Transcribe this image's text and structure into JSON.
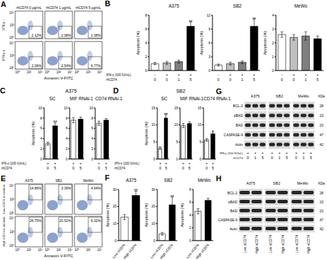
{
  "chart_data": [
    {
      "panel": "B",
      "type": "bar",
      "title": "A375",
      "y_label": "Apoptosis (%)",
      "categories": [
        null,
        null,
        null,
        null
      ],
      "x_rows": [
        {
          "label": "IFN-γ (100 IU/mL)",
          "values": [
            "-",
            "+",
            "+",
            "+"
          ]
        },
        {
          "label": "rhCD74",
          "values": [
            "0",
            "0",
            "1",
            "5"
          ]
        }
      ],
      "values": [
        1.0,
        1.1,
        1.3,
        6.4
      ],
      "errors": [
        0.15,
        0.2,
        0.2,
        0.6
      ],
      "annotations": [
        null,
        null,
        null,
        "**"
      ],
      "colors": [
        "#ffffff",
        "#bfbfbf",
        "#7f7f7f",
        "#000000"
      ],
      "ylim": [
        0,
        8
      ],
      "yticks": [
        0,
        2,
        4,
        6,
        8
      ]
    },
    {
      "panel": "B",
      "type": "bar",
      "title": "SB2",
      "y_label": "Apoptosis (%)",
      "categories": [
        null,
        null,
        null,
        null
      ],
      "x_rows": [
        {
          "values": [
            "-",
            "+",
            "+",
            "+"
          ]
        },
        {
          "values": [
            "0",
            "0",
            "1",
            "5"
          ]
        }
      ],
      "values": [
        1.2,
        1.5,
        1.8,
        9.6
      ],
      "errors": [
        0.2,
        0.3,
        0.3,
        1.5
      ],
      "annotations": [
        null,
        null,
        null,
        "**"
      ],
      "colors": [
        "#ffffff",
        "#bfbfbf",
        "#7f7f7f",
        "#000000"
      ],
      "ylim": [
        0,
        12
      ],
      "yticks": [
        0,
        3,
        6,
        9,
        12
      ]
    },
    {
      "panel": "B",
      "type": "bar",
      "title": "MeWo",
      "y_label": "Apoptosis (%)",
      "categories": [
        null,
        null,
        null,
        null
      ],
      "x_rows": [
        {
          "values": [
            "-",
            "+",
            "+",
            "+"
          ]
        },
        {
          "values": [
            "0",
            "0",
            "1",
            "5"
          ]
        }
      ],
      "values": [
        2.6,
        2.4,
        2.5,
        2.3
      ],
      "errors": [
        0.2,
        0.2,
        0.3,
        0.2
      ],
      "annotations": [
        null,
        null,
        null,
        null
      ],
      "colors": [
        "#ffffff",
        "#bfbfbf",
        "#7f7f7f",
        "#000000"
      ],
      "ylim": [
        0,
        4
      ],
      "yticks": [
        0,
        1,
        2,
        3,
        4
      ]
    },
    {
      "panel": "C",
      "group_title": "A375",
      "type": "bar",
      "title": "SC",
      "y_label": "Apoptosis (%)",
      "categories": [
        null,
        null
      ],
      "x_rows": [
        {
          "label": "IFN-γ (100 IU/mL)",
          "values": [
            "+",
            "+"
          ]
        },
        {
          "label": "rhCD74",
          "values": [
            "0",
            "5"
          ]
        }
      ],
      "values": [
        3.0,
        6.5
      ],
      "errors": [
        0.3,
        0.6
      ],
      "annotations": [
        null,
        "**"
      ],
      "colors": [
        "#ffffff",
        "#000000"
      ],
      "ylim": [
        0,
        10
      ],
      "yticks": [
        0,
        2,
        4,
        6,
        8,
        10
      ]
    },
    {
      "panel": "C",
      "type": "bar",
      "title": "MIF RNAi-1",
      "categories": [
        null,
        null
      ],
      "x_rows": [
        {
          "values": [
            "+",
            "+"
          ]
        },
        {
          "values": [
            "0",
            "5"
          ]
        }
      ],
      "values": [
        7.6,
        7.8
      ],
      "errors": [
        0.5,
        0.4
      ],
      "annotations": [
        null,
        null
      ],
      "colors": [
        "#ffffff",
        "#000000"
      ],
      "ylim": [
        0,
        10
      ],
      "yticks": [
        0,
        2,
        4,
        6,
        8,
        10
      ]
    },
    {
      "panel": "C",
      "type": "bar",
      "title": "CD74 RNAi-1",
      "categories": [
        null,
        null
      ],
      "x_rows": [
        {
          "values": [
            "+",
            "+"
          ]
        },
        {
          "values": [
            "0",
            "5"
          ]
        }
      ],
      "values": [
        7.0,
        7.6
      ],
      "errors": [
        0.4,
        0.3
      ],
      "annotations": [
        null,
        null
      ],
      "colors": [
        "#ffffff",
        "#000000"
      ],
      "ylim": [
        0,
        10
      ],
      "yticks": [
        0,
        2,
        4,
        6,
        8,
        10
      ]
    },
    {
      "panel": "D",
      "group_title": "SB2",
      "type": "bar",
      "title": "SC",
      "y_label": "Apoptosis (%)",
      "categories": [
        null,
        null
      ],
      "x_rows": [
        {
          "label": "IFN-γ (100 IU/mL)",
          "values": [
            "+",
            "+"
          ]
        },
        {
          "label": "rhCD74",
          "values": [
            "0",
            "5"
          ]
        }
      ],
      "values": [
        3.2,
        12.0
      ],
      "errors": [
        0.4,
        1.0
      ],
      "annotations": [
        null,
        "**"
      ],
      "colors": [
        "#ffffff",
        "#000000"
      ],
      "ylim": [
        0,
        15
      ],
      "yticks": [
        0,
        5,
        10,
        15
      ]
    },
    {
      "panel": "D",
      "type": "bar",
      "title": "MIF RNAi-1",
      "categories": [
        null,
        null
      ],
      "x_rows": [
        {
          "values": [
            "+",
            "+"
          ]
        },
        {
          "values": [
            "0",
            "5"
          ]
        }
      ],
      "values": [
        9.8,
        10.4
      ],
      "errors": [
        0.6,
        0.5
      ],
      "annotations": [
        null,
        null
      ],
      "colors": [
        "#ffffff",
        "#000000"
      ],
      "ylim": [
        0,
        15
      ],
      "yticks": [
        0,
        5,
        10,
        15
      ]
    },
    {
      "panel": "D",
      "type": "bar",
      "title": "CD74 RNAi-1",
      "categories": [
        null,
        null
      ],
      "x_rows": [
        {
          "values": [
            "+",
            "+"
          ]
        },
        {
          "values": [
            "0",
            "5"
          ]
        }
      ],
      "values": [
        5.6,
        7.4
      ],
      "errors": [
        0.4,
        0.5
      ],
      "annotations": [
        null,
        "*"
      ],
      "colors": [
        "#ffffff",
        "#000000"
      ],
      "ylim": [
        0,
        15
      ],
      "yticks": [
        0,
        5,
        10,
        15
      ]
    },
    {
      "panel": "F",
      "type": "bar",
      "title": "A375",
      "y_label": "Apoptosis (%)",
      "categories": [
        null,
        null
      ],
      "x_rows": [
        {
          "values": [
            "Low sCD74",
            "High sCD74"
          ]
        }
      ],
      "values": [
        13.8,
        26.5
      ],
      "errors": [
        1.5,
        2.5
      ],
      "annotations": [
        null,
        "**"
      ],
      "colors": [
        "#ffffff",
        "#000000"
      ],
      "ylim": [
        0,
        30
      ],
      "yticks": [
        0,
        10,
        20,
        30
      ]
    },
    {
      "panel": "F",
      "type": "bar",
      "title": "SB2",
      "y_label": "Apoptosis (%)",
      "categories": [
        null,
        null
      ],
      "x_rows": [
        {
          "values": [
            "Low sCD74",
            "High sCD74"
          ]
        }
      ],
      "values": [
        4.0,
        21.0
      ],
      "errors": [
        0.8,
        4.5
      ],
      "annotations": [
        null,
        "**"
      ],
      "colors": [
        "#ffffff",
        "#000000"
      ],
      "ylim": [
        0,
        30
      ],
      "yticks": [
        0,
        10,
        20,
        30
      ]
    },
    {
      "panel": "F",
      "type": "bar",
      "title": "MeWo",
      "y_label": "Apoptosis (%)",
      "categories": [
        null,
        null
      ],
      "x_rows": [
        {
          "values": [
            "Low sCD74",
            "High sCD74"
          ]
        }
      ],
      "values": [
        4.6,
        6.3
      ],
      "errors": [
        0.4,
        0.3
      ],
      "annotations": [
        null,
        null
      ],
      "colors": [
        "#ffffff",
        "#000000"
      ],
      "ylim": [
        0,
        8
      ],
      "yticks": [
        0,
        2,
        4,
        6,
        8
      ]
    }
  ],
  "flow": [
    {
      "panel": "A",
      "columns": [
        "rhCD74 0 μg/mL",
        "rhCD74 1 μg/mL",
        "rhCD74 5 μg/mL"
      ],
      "rows": [
        "IFN-γ -",
        "IFN-γ +"
      ],
      "percentages": [
        [
          "2.12%",
          "2.08%",
          "2.38%"
        ],
        [
          "2.06%",
          "2.54%",
          "6.77%"
        ]
      ],
      "x_label": "Annexin V-FITC",
      "ticks": [
        "10⁰",
        "10²",
        "10⁴"
      ]
    },
    {
      "panel": "E",
      "columns": [
        "A375",
        "SB2",
        "MeWo"
      ],
      "rows": [
        "Low sCD74 in medium",
        "High sCD74 in medium"
      ],
      "percentages": [
        [
          "14.86%",
          "3.39%",
          "4.64%"
        ],
        [
          "26.75%",
          "20.52%",
          "6.32%"
        ]
      ],
      "x_label": "Annexin V-FITC",
      "ticks": [
        "10⁰",
        "10²",
        "10⁴"
      ]
    }
  ],
  "blots": [
    {
      "panel": "G",
      "groups": [
        "A375",
        "SB2",
        "MeWo"
      ],
      "proteins": [
        "BCL-2",
        "pBAD",
        "BAD",
        "CASPASE-9",
        "Actin"
      ],
      "kda": [
        28,
        23,
        23,
        47,
        42
      ],
      "kda_label": "KDa",
      "lane_rows": [
        {
          "label": "IFN-γ (100 IU/mL)",
          "values": [
            "+",
            "+",
            "+",
            "+",
            "+",
            "+",
            "+",
            "+",
            "+"
          ]
        },
        {
          "label": "rhCD74",
          "values": [
            "0",
            "1",
            "5",
            "0",
            "1",
            "5",
            "0",
            "1",
            "5"
          ]
        }
      ]
    },
    {
      "panel": "H",
      "groups": [
        "A375",
        "SB2",
        "MeWo"
      ],
      "proteins": [
        "BCL-2",
        "pBAD",
        "BAD",
        "CASPASE-9",
        "Actin"
      ],
      "kda": [
        28,
        23,
        23,
        47,
        42
      ],
      "kda_label": "KDa",
      "lane_rows": [
        {
          "values": [
            "Low sCD74",
            "High sCD74",
            "Low sCD74",
            "High sCD74",
            "Low sCD74",
            "High sCD74"
          ]
        }
      ]
    }
  ]
}
